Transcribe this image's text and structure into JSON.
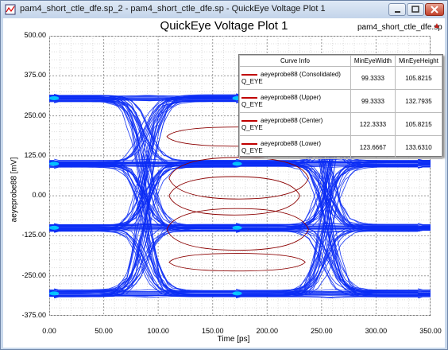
{
  "window": {
    "title": "pam4_short_ctle_dfe.sp_2 - pam4_short_ctle_dfe.sp - QuickEye Voltage Plot 1"
  },
  "plot": {
    "title": "QuickEye Voltage Plot 1",
    "file": "pam4_short_ctle_dfe.sp",
    "xlabel": "Time [ps]",
    "ylabel": "aeyeprobe88 [mV]",
    "x_ticks": [
      "0.00",
      "50.00",
      "100.00",
      "150.00",
      "200.00",
      "250.00",
      "300.00",
      "350.00"
    ],
    "y_ticks": [
      "500.00",
      "375.00",
      "250.00",
      "125.00",
      "0.00",
      "-125.00",
      "-250.00",
      "-375.00"
    ]
  },
  "legend": {
    "headers": [
      "Curve Info",
      "MinEyeWidth",
      "MinEyeHeight"
    ],
    "rows": [
      {
        "name": "aeyeprobe88 (Consolidated)",
        "sub": "Q_EYE",
        "width": "99.3333",
        "height": "105.8215"
      },
      {
        "name": "aeyeprobe88 (Upper)",
        "sub": "Q_EYE",
        "width": "99.3333",
        "height": "132.7935"
      },
      {
        "name": "aeyeprobe88 (Center)",
        "sub": "Q_EYE",
        "width": "122.3333",
        "height": "105.8215"
      },
      {
        "name": "aeyeprobe88 (Lower)",
        "sub": "Q_EYE",
        "width": "123.6667",
        "height": "133.6310"
      }
    ]
  },
  "chart_data": {
    "type": "line",
    "title": "QuickEye Voltage Plot 1",
    "xlabel": "Time [ps]",
    "ylabel": "aeyeprobe88 [mV]",
    "xlim": [
      0,
      350
    ],
    "ylim": [
      -375,
      500
    ],
    "grid": true,
    "legend_position": "top-right",
    "colors": {
      "eye": "#0a2cf5",
      "mask": "#8b0000",
      "bright": "#00e5ff"
    },
    "series": [
      {
        "name": "aeyeprobe88 (Consolidated)",
        "min_eye_width": 99.3333,
        "min_eye_height": 105.8215
      },
      {
        "name": "aeyeprobe88 (Upper)",
        "min_eye_width": 99.3333,
        "min_eye_height": 132.7935
      },
      {
        "name": "aeyeprobe88 (Center)",
        "min_eye_width": 122.3333,
        "min_eye_height": 105.8215
      },
      {
        "name": "aeyeprobe88 (Lower)",
        "min_eye_width": 123.6667,
        "min_eye_height": 133.631
      }
    ]
  }
}
